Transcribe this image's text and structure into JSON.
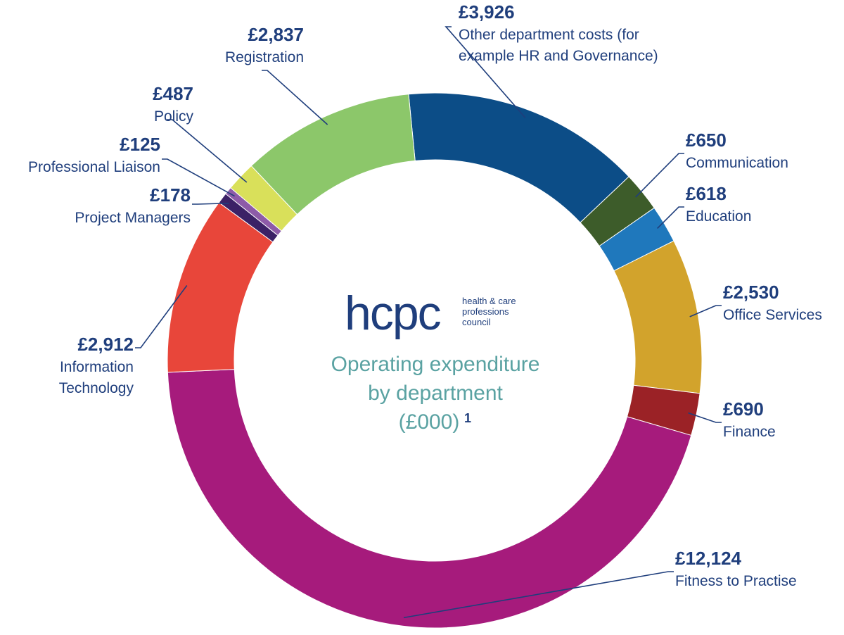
{
  "logo": {
    "word": "hcpc",
    "sub_line1": "health & care",
    "sub_line2": "professions",
    "sub_line3": "council"
  },
  "center": {
    "line1": "Operating expenditure",
    "line2": "by department",
    "line3": "(£000)",
    "footnote_marker": "1"
  },
  "chart_data": {
    "type": "pie",
    "variant": "donut",
    "title": "Operating expenditure by department (£000)",
    "unit": "£000",
    "grid": false,
    "legend": "none",
    "slices": [
      {
        "label": "Other department costs (for example HR and Governance)",
        "label_lines": [
          "Other department costs (for",
          "example HR and Governance)"
        ],
        "value": 3926,
        "value_text": "£3,926",
        "color": "#0c4d87"
      },
      {
        "label": "Communication",
        "label_lines": [
          "Communication"
        ],
        "value": 650,
        "value_text": "£650",
        "color": "#3d5c2a"
      },
      {
        "label": "Education",
        "label_lines": [
          "Education"
        ],
        "value": 618,
        "value_text": "£618",
        "color": "#1f78bc"
      },
      {
        "label": "Office Services",
        "label_lines": [
          "Office Services"
        ],
        "value": 2530,
        "value_text": "£2,530",
        "color": "#d2a32c"
      },
      {
        "label": "Finance",
        "label_lines": [
          "Finance"
        ],
        "value": 690,
        "value_text": "£690",
        "color": "#9b2226"
      },
      {
        "label": "Fitness to Practise",
        "label_lines": [
          "Fitness to Practise"
        ],
        "value": 12124,
        "value_text": "£12,124",
        "color": "#a61b7c"
      },
      {
        "label": "Information Technology",
        "label_lines": [
          "Information",
          "Technology"
        ],
        "value": 2912,
        "value_text": "£2,912",
        "color": "#e8463a"
      },
      {
        "label": "Project Managers",
        "label_lines": [
          "Project Managers"
        ],
        "value": 178,
        "value_text": "£178",
        "color": "#3b2166"
      },
      {
        "label": "Professional Liaison",
        "label_lines": [
          "Professional Liaison"
        ],
        "value": 125,
        "value_text": "£125",
        "color": "#8d5ba8"
      },
      {
        "label": "Policy",
        "label_lines": [
          "Policy"
        ],
        "value": 487,
        "value_text": "£487",
        "color": "#d9e05a"
      },
      {
        "label": "Registration",
        "label_lines": [
          "Registration"
        ],
        "value": 2837,
        "value_text": "£2,837",
        "color": "#8cc76a"
      }
    ]
  }
}
